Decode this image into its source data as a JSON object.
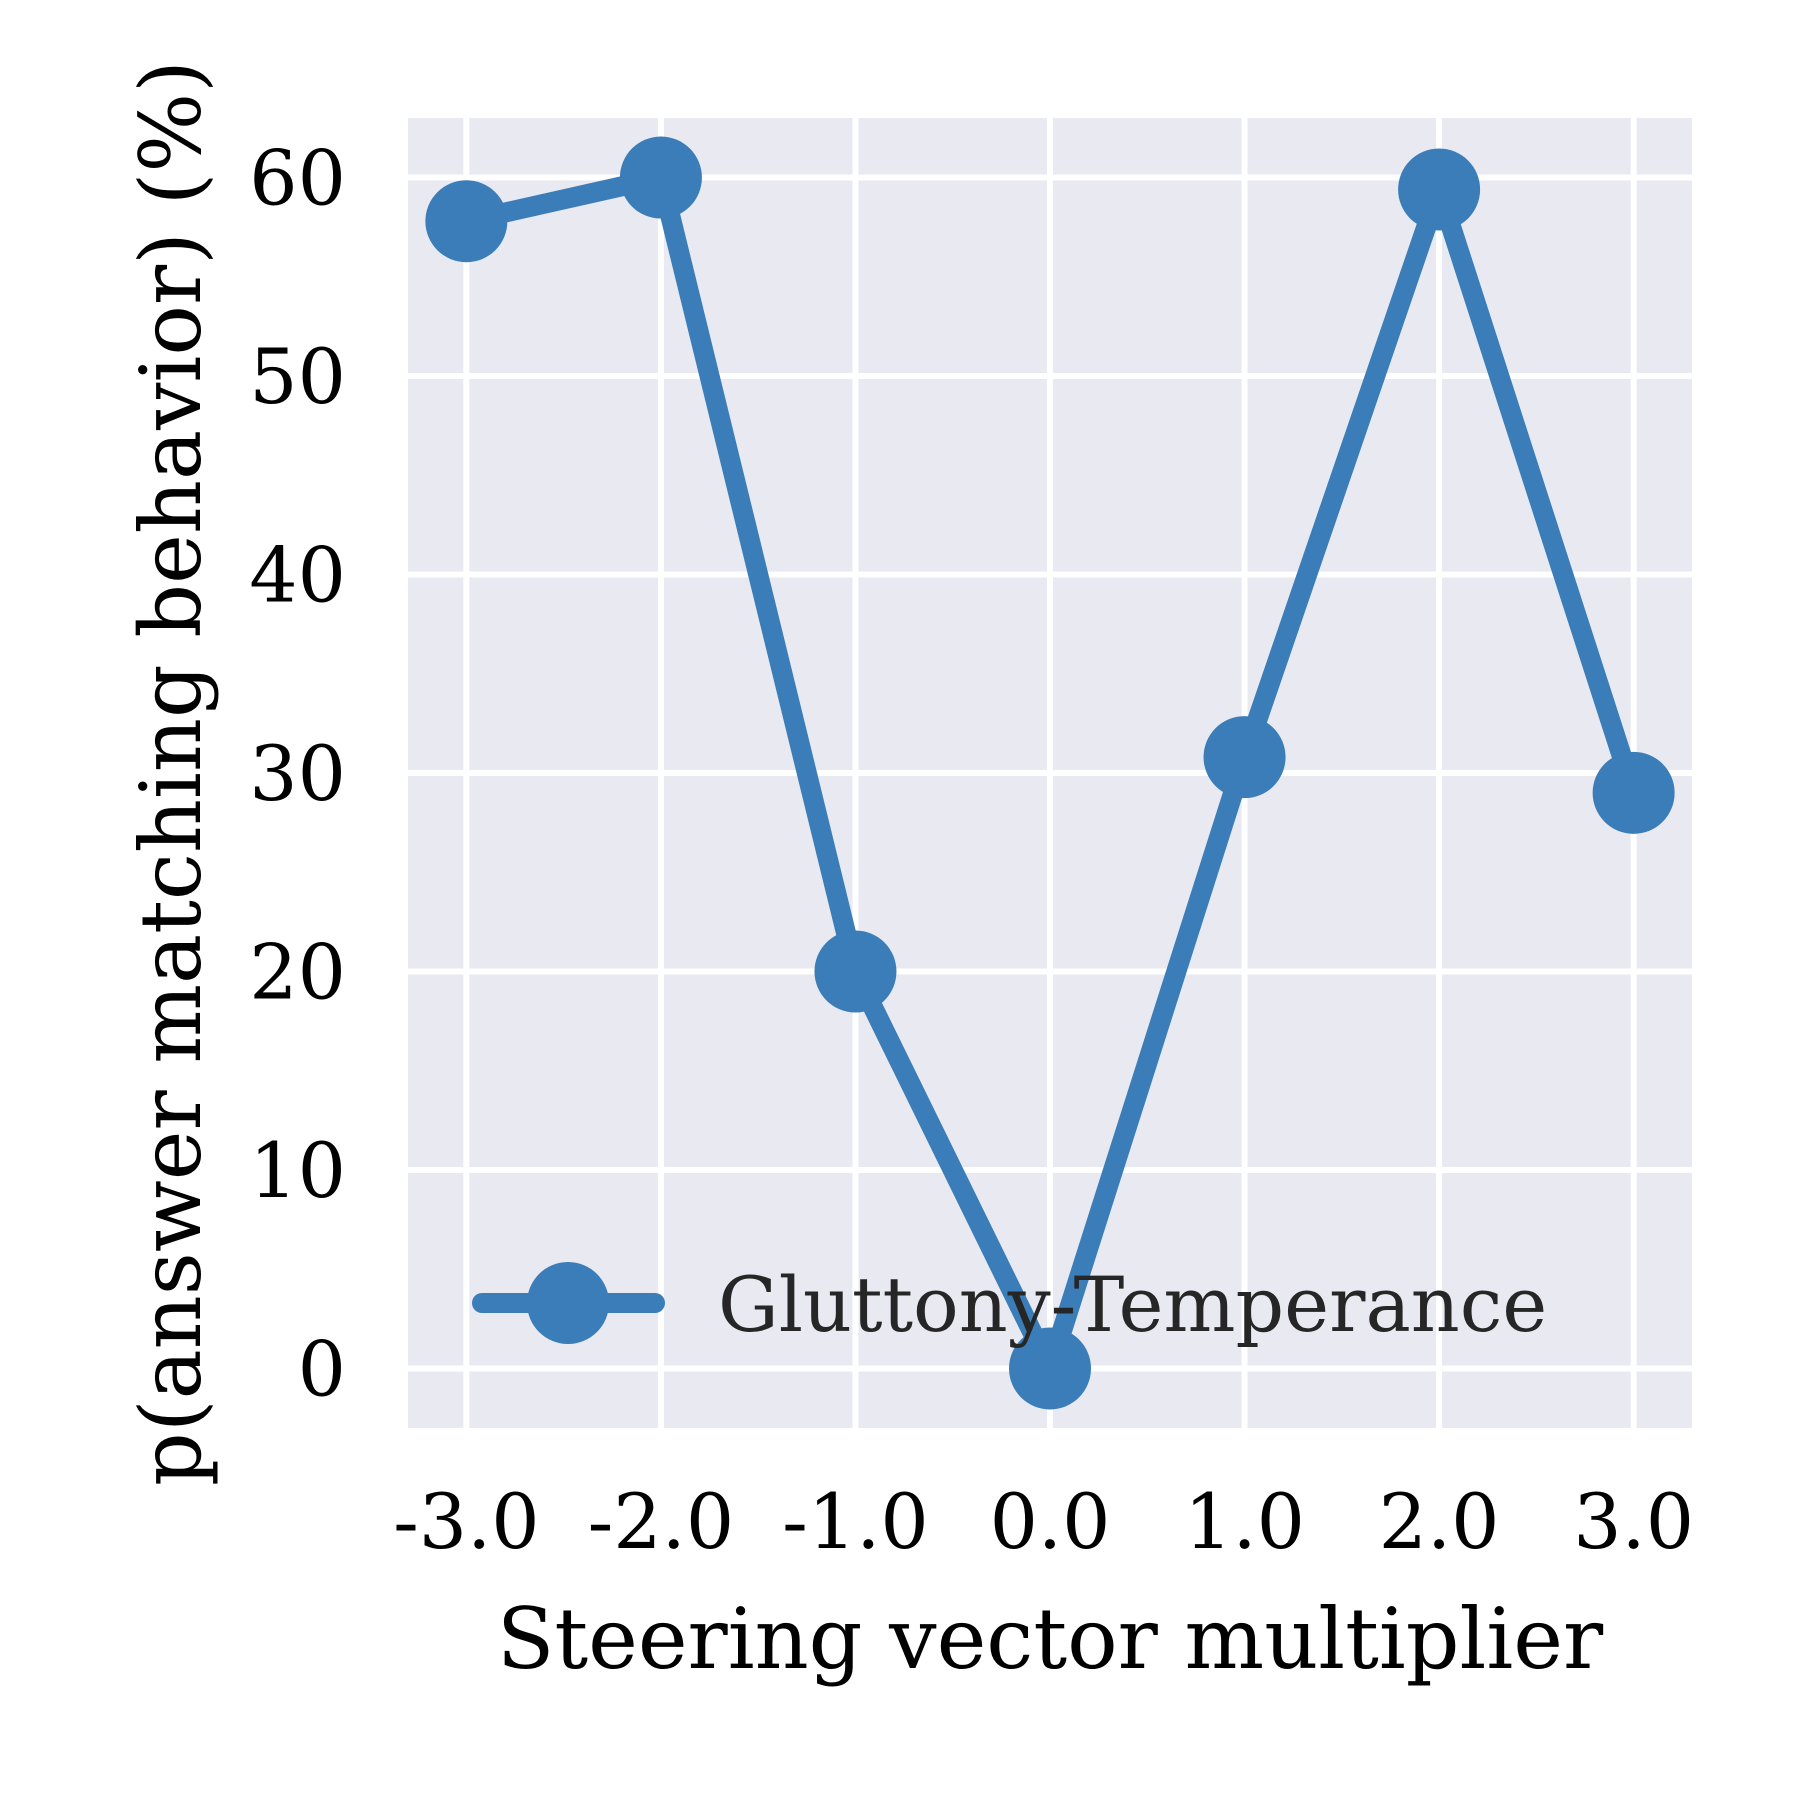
{
  "chart_data": {
    "type": "line",
    "xlabel": "Steering vector multiplier",
    "ylabel": "p(answer matching behavior) (%)",
    "x": [
      -3.0,
      -2.0,
      -1.0,
      0.0,
      1.0,
      2.0,
      3.0
    ],
    "x_tick_labels": [
      "-3.0",
      "-2.0",
      "-1.0",
      "0.0",
      "1.0",
      "2.0",
      "3.0"
    ],
    "y_ticks": [
      0,
      10,
      20,
      30,
      40,
      50,
      60
    ],
    "y_tick_labels": [
      "0",
      "10",
      "20",
      "30",
      "40",
      "50",
      "60"
    ],
    "xlim": [
      -3.3,
      3.3
    ],
    "ylim": [
      -3,
      63
    ],
    "grid": true,
    "legend_position": "lower-right",
    "series": [
      {
        "name": "Gluttony-Temperance",
        "color": "#3a7db8",
        "values": [
          57.8,
          60.0,
          20.0,
          0.0,
          30.8,
          59.4,
          29.0
        ]
      }
    ]
  }
}
